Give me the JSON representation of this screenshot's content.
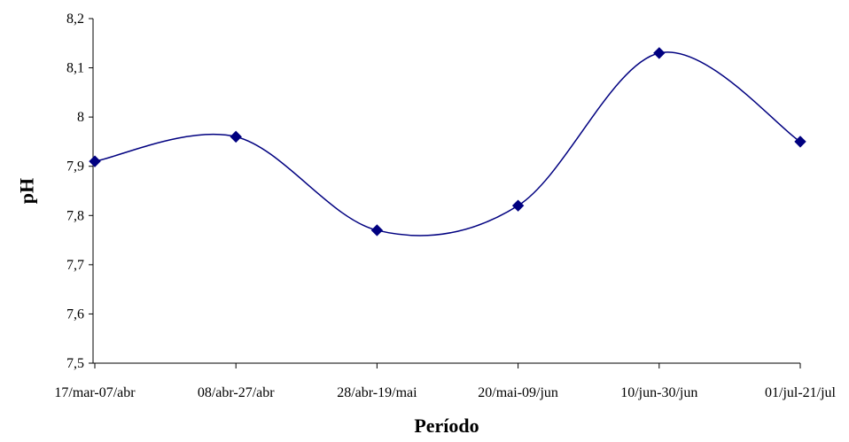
{
  "chart_data": {
    "type": "line",
    "title": "",
    "xlabel": "Período",
    "ylabel": "pH",
    "categories": [
      "17/mar-07/abr",
      "08/abr-27/abr",
      "28/abr-19/mai",
      "20/mai-09/jun",
      "10/jun-30/jun",
      "01/jul-21/jul"
    ],
    "series": [
      {
        "values": [
          7.91,
          7.96,
          7.77,
          7.82,
          8.13,
          7.95
        ],
        "color": "#000080",
        "marker": "diamond",
        "smooth": true
      }
    ],
    "ylim": [
      7.5,
      8.2
    ],
    "yticks": [
      "7,5",
      "7,6",
      "7,7",
      "7,8",
      "7,9",
      "8",
      "8,1",
      "8,2"
    ],
    "grid": false,
    "legend": "none"
  }
}
